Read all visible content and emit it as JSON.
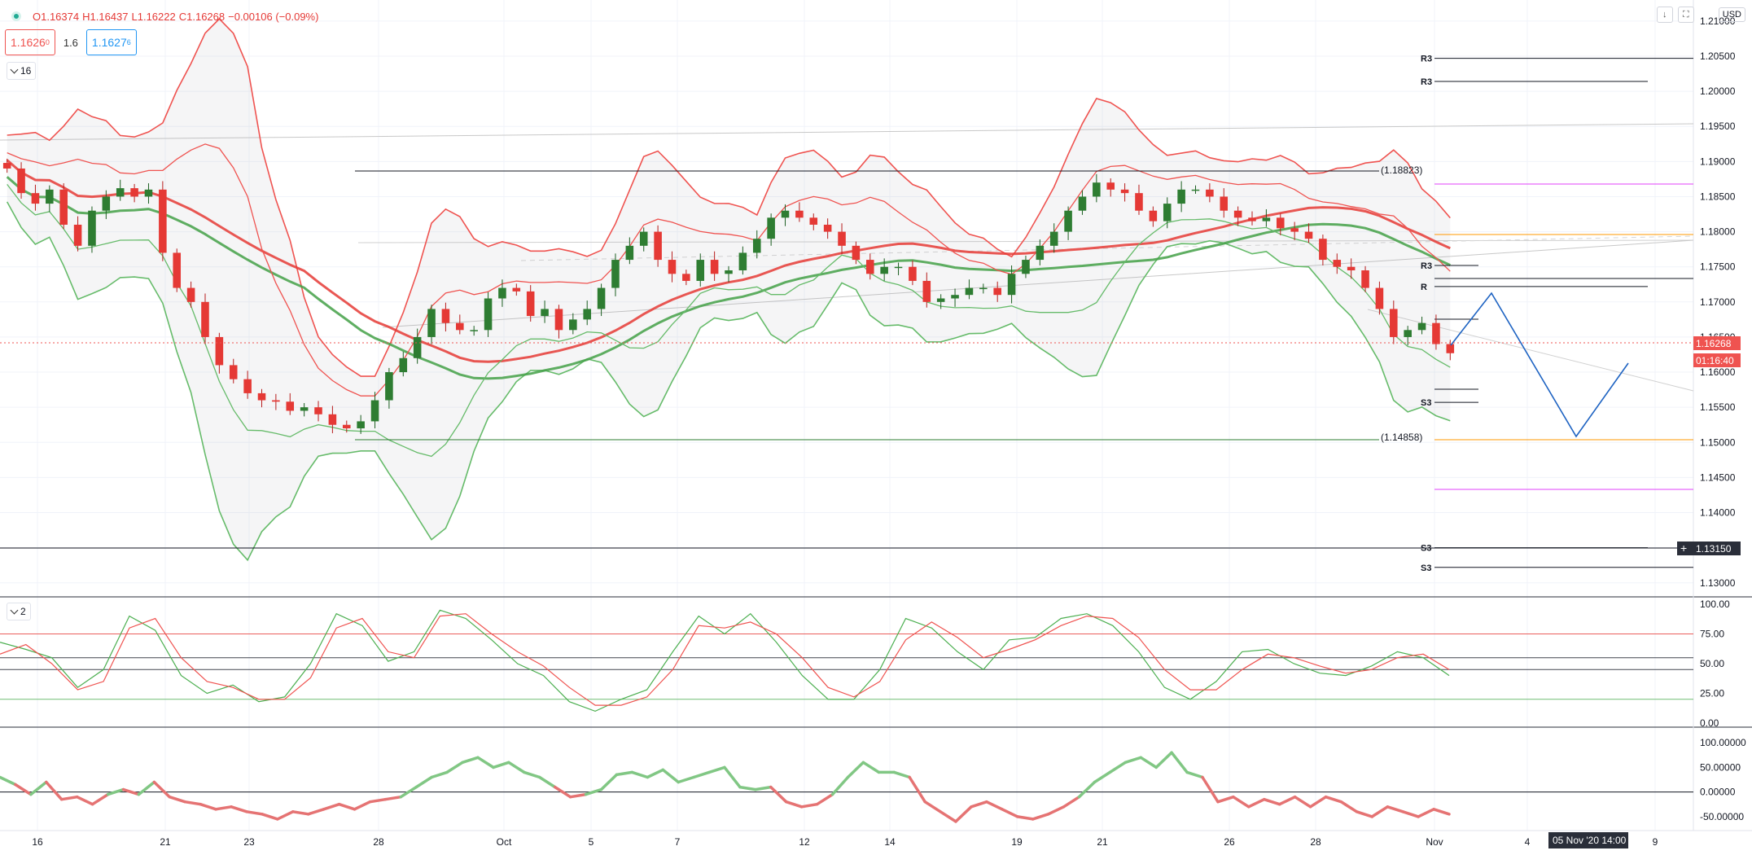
{
  "header": {
    "open": "O1.16374",
    "high": "H1.16437",
    "low": "L1.16222",
    "close": "C1.16268",
    "change": "−0.00106 (−0.09%)",
    "sell_price": "1.1626",
    "sell_price_sup": "0",
    "spread": "1.6",
    "buy_price": "1.1627",
    "buy_price_sup": "6",
    "main_pane_label": "16",
    "oscillator_pane_label": "2",
    "currency": "USD",
    "download_icon": "arrow-down-icon",
    "fullscreen_icon": "fullscreen-icon"
  },
  "price_axis": {
    "labels": [
      "1.21000",
      "1.20500",
      "1.20000",
      "1.19500",
      "1.19000",
      "1.18500",
      "1.18000",
      "1.17500",
      "1.17000",
      "1.16500",
      "1.16000",
      "1.15500",
      "1.15000",
      "1.14500",
      "1.14000",
      "1.13500",
      "1.13000"
    ],
    "values": [
      1.21,
      1.205,
      1.2,
      1.195,
      1.19,
      1.185,
      1.18,
      1.175,
      1.17,
      1.165,
      1.16,
      1.155,
      1.15,
      1.145,
      1.14,
      1.135,
      1.13
    ],
    "last_price_label": "1.16268",
    "countdown_label": "01:16:40",
    "crosshair_label": "1.13150"
  },
  "time_axis": {
    "labels": [
      "16",
      "21",
      "23",
      "28",
      "Oct",
      "5",
      "7",
      "12",
      "14",
      "19",
      "21",
      "26",
      "28",
      "Nov",
      "4",
      "9"
    ],
    "highlight_label": "05 Nov '20  14:00"
  },
  "osc1_axis": {
    "labels": [
      "100.00",
      "75.00",
      "50.00",
      "25.00",
      "0.00"
    ],
    "values": [
      100,
      75,
      50,
      25,
      0
    ]
  },
  "osc2_axis": {
    "labels": [
      "100.00000",
      "50.00000",
      "0.00000",
      "-50.00000"
    ],
    "values": [
      100,
      50,
      0,
      -50
    ]
  },
  "annotations": {
    "upper_level_label": "(1.18823)",
    "lower_level_label": "(1.14858)",
    "pivot_labels": [
      "R3",
      "R3",
      "R3",
      "R",
      "S3",
      "S3",
      "S3"
    ]
  },
  "chart_data": [
    {
      "type": "candlestick",
      "x_range": [
        "Sep 15",
        "Nov 9"
      ],
      "ylim": [
        1.128,
        1.213
      ],
      "close_path": [
        1.189,
        1.1855,
        1.184,
        1.186,
        1.181,
        1.178,
        1.183,
        1.185,
        1.1862,
        1.185,
        1.186,
        1.177,
        1.172,
        1.17,
        1.165,
        1.161,
        1.159,
        1.157,
        1.156,
        1.1558,
        1.1545,
        1.155,
        1.154,
        1.1525,
        1.152,
        1.153,
        1.156,
        1.16,
        1.162,
        1.165,
        1.169,
        1.167,
        1.166,
        1.166,
        1.1705,
        1.172,
        1.1715,
        1.168,
        1.169,
        1.166,
        1.1675,
        1.169,
        1.172,
        1.176,
        1.178,
        1.18,
        1.176,
        1.174,
        1.173,
        1.176,
        1.174,
        1.1745,
        1.177,
        1.179,
        1.182,
        1.183,
        1.182,
        1.181,
        1.18,
        1.178,
        1.176,
        1.174,
        1.175,
        1.175,
        1.173,
        1.17,
        1.1705,
        1.171,
        1.172,
        1.172,
        1.171,
        1.174,
        1.176,
        1.178,
        1.18,
        1.183,
        1.185,
        1.187,
        1.186,
        1.1855,
        1.183,
        1.1815,
        1.184,
        1.186,
        1.186,
        1.185,
        1.183,
        1.182,
        1.1815,
        1.182,
        1.1805,
        1.18,
        1.179,
        1.176,
        1.175,
        1.1745,
        1.172,
        1.169,
        1.165,
        1.166,
        1.167,
        1.164,
        1.1627
      ],
      "pivot_levels": [
        1.2047,
        1.2014,
        1.1752,
        1.1722,
        1.1557,
        1.135,
        1.1322
      ]
    },
    {
      "type": "line",
      "title": "",
      "series": [
        {
          "name": "",
          "color": "#4caf50",
          "values": [
            68,
            62,
            55,
            30,
            45,
            90,
            78,
            40,
            25,
            32,
            18,
            22,
            50,
            92,
            82,
            52,
            60,
            95,
            88,
            70,
            50,
            40,
            18,
            10,
            20,
            28,
            60,
            90,
            75,
            92,
            68,
            40,
            20,
            20,
            45,
            88,
            80,
            60,
            45,
            70,
            72,
            88,
            92,
            82,
            60,
            30,
            20,
            35,
            60,
            62,
            50,
            42,
            40,
            48,
            60,
            55,
            40
          ]
        },
        {
          "name": "",
          "color": "#ef5350",
          "values": [
            58,
            66,
            50,
            28,
            35,
            80,
            88,
            55,
            35,
            30,
            20,
            20,
            38,
            80,
            88,
            60,
            55,
            90,
            92,
            75,
            60,
            48,
            30,
            15,
            15,
            22,
            45,
            82,
            80,
            85,
            75,
            55,
            30,
            22,
            35,
            70,
            85,
            72,
            55,
            62,
            70,
            82,
            90,
            88,
            72,
            45,
            28,
            28,
            45,
            58,
            55,
            48,
            42,
            45,
            55,
            58,
            45
          ]
        }
      ],
      "ylim": [
        0,
        100
      ],
      "levels": [
        75,
        55,
        45,
        20
      ]
    },
    {
      "type": "line",
      "title": "",
      "series": [
        {
          "name": "",
          "color_up": "#81c784",
          "color_down": "#e57373",
          "values": [
            30,
            15,
            -5,
            20,
            -15,
            -10,
            -25,
            -5,
            5,
            -5,
            20,
            -10,
            -20,
            -25,
            -35,
            -30,
            -40,
            -45,
            -55,
            -40,
            -45,
            -35,
            -25,
            -35,
            -20,
            -15,
            -10,
            10,
            30,
            40,
            60,
            70,
            50,
            60,
            40,
            30,
            10,
            -10,
            -5,
            5,
            35,
            40,
            30,
            45,
            20,
            30,
            40,
            50,
            10,
            5,
            10,
            -20,
            -30,
            -25,
            -5,
            30,
            60,
            40,
            40,
            30,
            -20,
            -40,
            -60,
            -30,
            -20,
            -35,
            -50,
            -55,
            -45,
            -30,
            -10,
            20,
            40,
            60,
            70,
            50,
            80,
            40,
            30,
            -20,
            -10,
            -30,
            -15,
            -25,
            -10,
            -30,
            -10,
            -20,
            -40,
            -50,
            -30,
            -40,
            -50,
            -35,
            -45
          ]
        }
      ],
      "ylim": [
        -75,
        120
      ],
      "levels": [
        0
      ]
    }
  ]
}
